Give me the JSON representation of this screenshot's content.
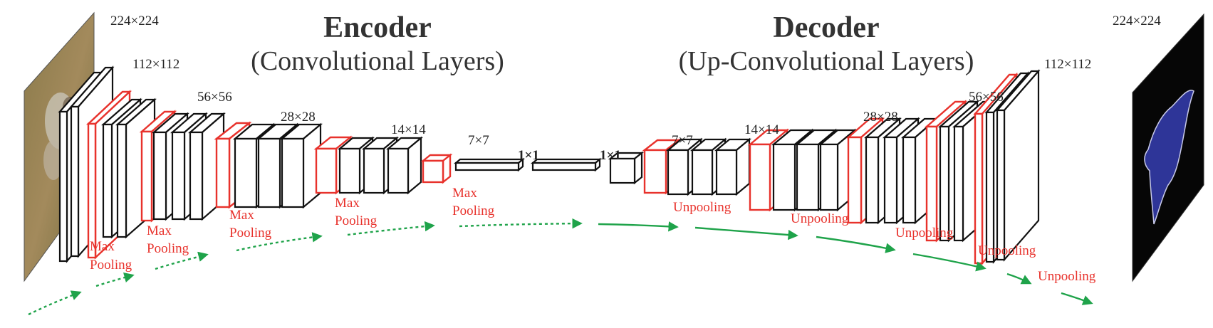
{
  "encoder": {
    "title": "Encoder",
    "subtitle": "(Convolutional Layers)"
  },
  "decoder": {
    "title": "Decoder",
    "subtitle": "(Up-Convolutional Layers)"
  },
  "dims": {
    "enc_224": "224×224",
    "enc_112": "112×112",
    "enc_56": "56×56",
    "enc_28": "28×28",
    "enc_14": "14×14",
    "enc_7": "7×7",
    "fc1": "1×1",
    "fc2": "1×1",
    "dec_7": "7×7",
    "dec_14": "14×14",
    "dec_28": "28×28",
    "dec_56": "56×56",
    "dec_112": "112×112",
    "dec_224": "224×224"
  },
  "ops": {
    "max": "Max",
    "pooling": "Pooling",
    "unpooling": "Unpooling"
  },
  "colors": {
    "pool": "#e8322c",
    "block": "#111111",
    "arrow": "#1fa34a",
    "title": "#333333"
  }
}
